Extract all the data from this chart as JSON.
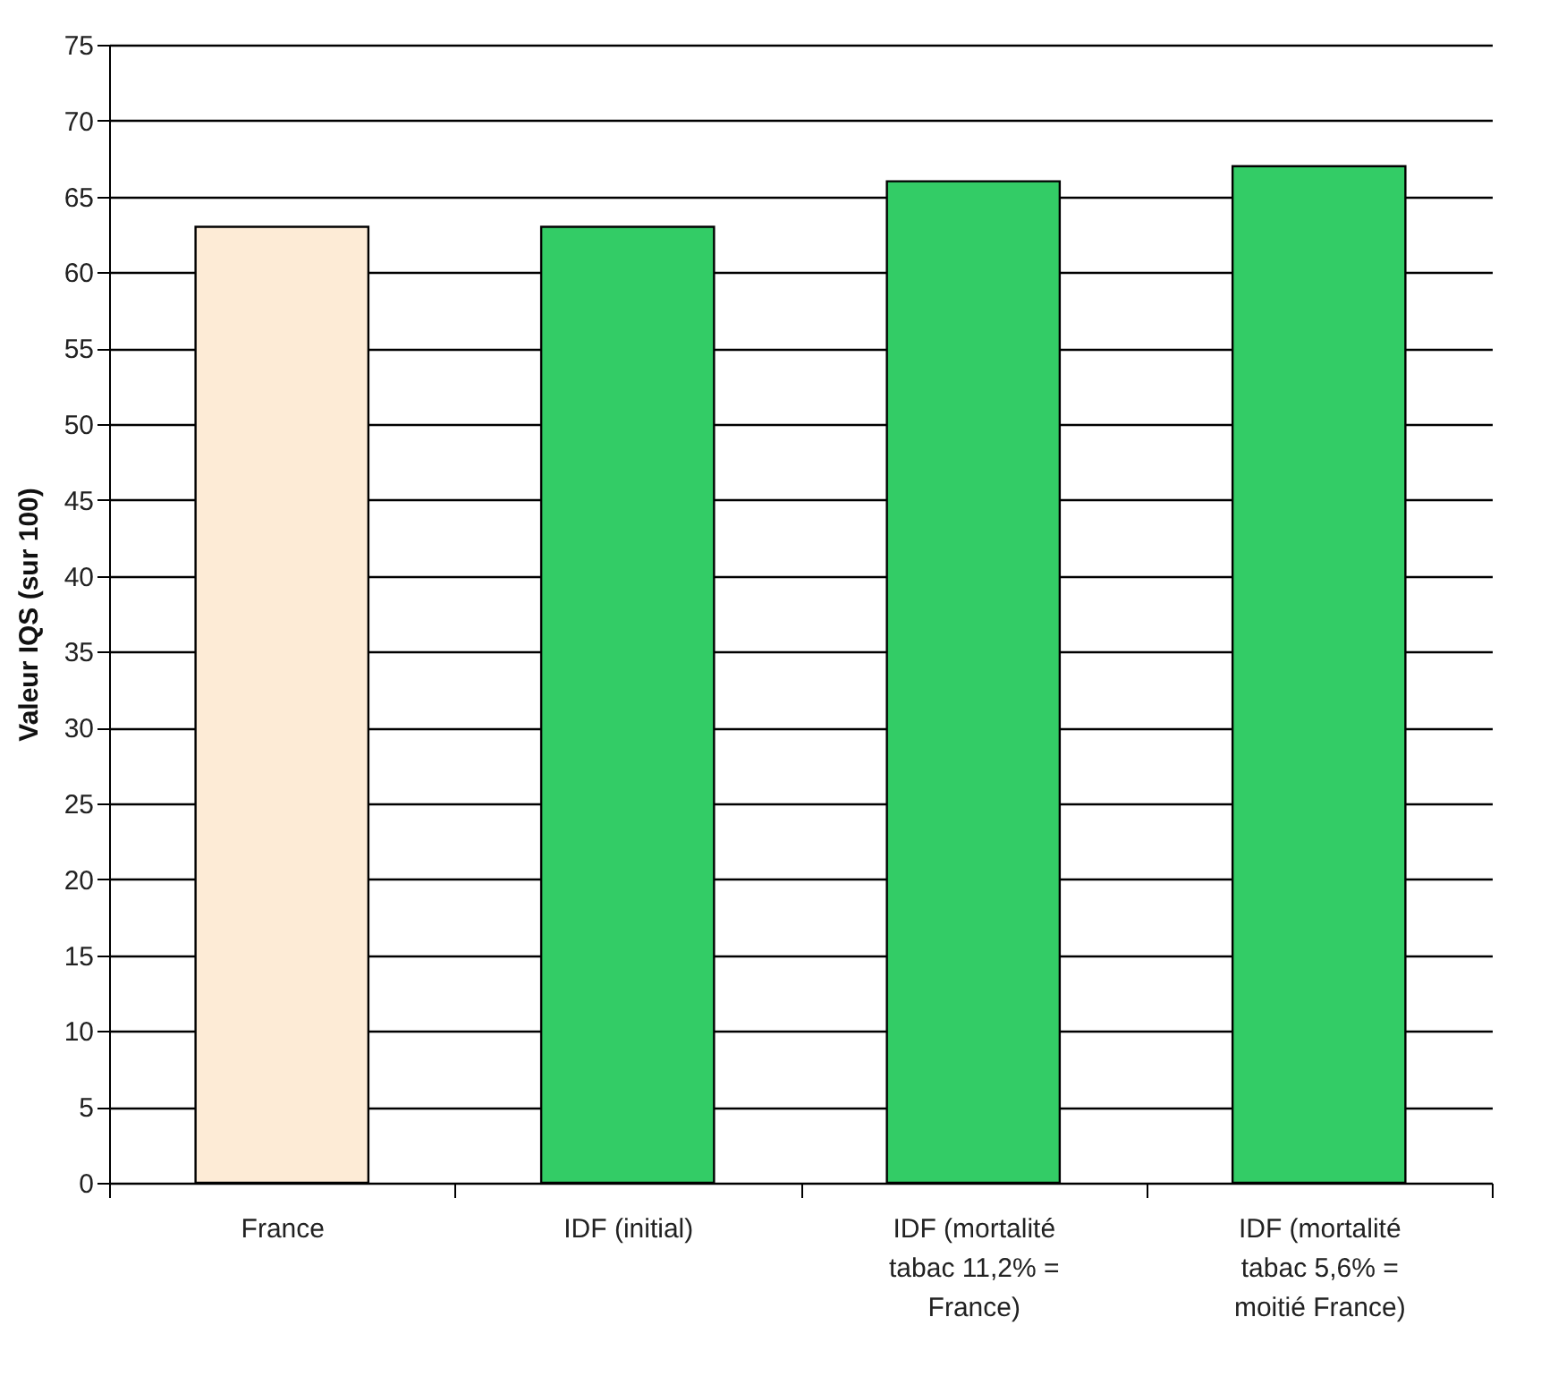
{
  "chart_data": {
    "type": "bar",
    "ylabel": "Valeur IQS (sur 100)",
    "categories": [
      "France",
      "IDF (initial)",
      "IDF (mortalité tabac 11,2% = France)",
      "IDF (mortalité tabac 5,6% = moitié France)"
    ],
    "values": [
      63,
      63,
      66,
      67
    ],
    "colors": [
      "#fdebd6",
      "#33cc66",
      "#33cc66",
      "#33cc66"
    ],
    "ylim": [
      0,
      75
    ],
    "yticks": [
      0,
      5,
      10,
      15,
      20,
      25,
      30,
      35,
      40,
      45,
      50,
      55,
      60,
      65,
      70,
      75
    ],
    "grid": "y"
  }
}
